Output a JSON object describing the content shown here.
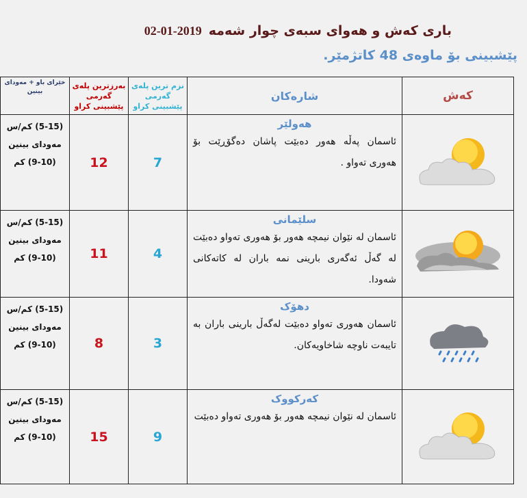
{
  "header": {
    "title": "باری کەش و هەوای سبەی چوار شەمە",
    "date": "2019-01-02",
    "subtitle": "پێشبینی بۆ ماوەی 48 کاتژمێر."
  },
  "columns": {
    "weather": "کەش",
    "city": "شارەکان",
    "min": "نزم ترین پلەی گەرمی پێشبینی کراو",
    "max": "بەرزترین پلەی گەرمی پێشبینی کراو",
    "wind": "خێرای باو + مەودای بینین"
  },
  "colors": {
    "title": "#5a1a1a",
    "subtitle": "#5b8fc9",
    "max": "#c8141e",
    "min": "#2aa6d4"
  },
  "rows": [
    {
      "icon": "partly-cloudy-icon",
      "city": "هەولێر",
      "desc": "ئاسمان پەڵە هەور دەبێت پاشان دەگۆڕێت بۆ هەوری تەواو .",
      "min": "7",
      "max": "12",
      "wind": "(5-15) کم/س",
      "visibility_label": "مەودای بینین",
      "visibility": "(9-10) کم"
    },
    {
      "icon": "cloudy-sun-icon",
      "city": "سلێمانی",
      "desc": "ئاسمان لە نێوان نیمچە هەور بۆ هەوری تەواو دەبێت لە گەڵ ئەگەری بارینی نمە باران لە کاتەکانی شەودا.",
      "min": "4",
      "max": "11",
      "wind": "(5-15) کم/س",
      "visibility_label": "مەودای بینین",
      "visibility": "(9-10) کم"
    },
    {
      "icon": "rain-cloud-icon",
      "city": "دهۆک",
      "desc": "ئاسمان هەوری تەواو دەبێت لەگەڵ بارینی باران بە تایبەت ناوچە شاخاویەکان.",
      "min": "3",
      "max": "8",
      "wind": "(5-15) کم/س",
      "visibility_label": "مەودای بینین",
      "visibility": "(9-10) کم"
    },
    {
      "icon": "partly-cloudy-icon",
      "city": "کەرکووک",
      "desc": "ئاسمان لە نێوان نیمچە هەور بۆ هەوری تەواو دەبێت",
      "min": "9",
      "max": "15",
      "wind": "(5-15) کم/س",
      "visibility_label": "مەودای بینین",
      "visibility": "(9-10) کم"
    }
  ]
}
